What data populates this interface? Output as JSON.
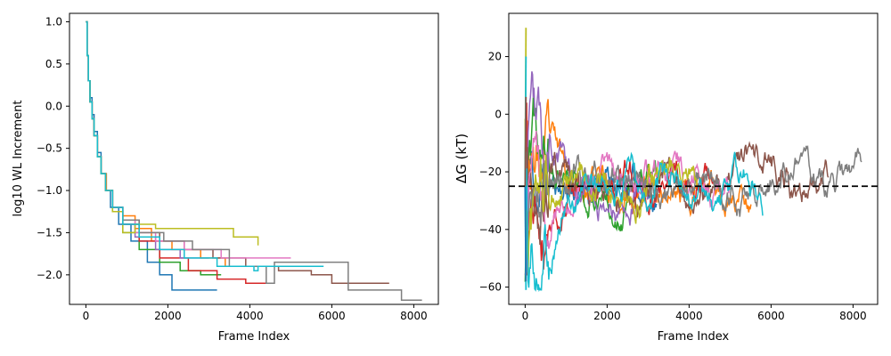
{
  "chart_data": [
    {
      "type": "line",
      "xlabel": "Frame Index",
      "ylabel": "log10 WL Increment",
      "xlim": [
        -400,
        8600
      ],
      "ylim": [
        -2.35,
        1.1
      ],
      "x_ticks": [
        0,
        2000,
        4000,
        6000,
        8000
      ],
      "y_ticks": [
        1.0,
        0.5,
        0.0,
        -0.5,
        -1.0,
        -1.5,
        -2.0
      ],
      "x_tick_labels": [
        "0",
        "2000",
        "4000",
        "6000",
        "8000"
      ],
      "y_tick_labels": [
        "1.0",
        "0.5",
        "0.0",
        "−0.5",
        "−1.0",
        "−1.5",
        "−2.0"
      ],
      "grid": false,
      "line_style": "step",
      "colors": [
        "#1f77b4",
        "#ff7f0e",
        "#2ca02c",
        "#d62728",
        "#9467bd",
        "#8c564b",
        "#e377c2",
        "#7f7f7f",
        "#bcbd22",
        "#17becf"
      ],
      "series": [
        {
          "color": "#1f77b4",
          "x": [
            0,
            30,
            60,
            100,
            150,
            200,
            280,
            370,
            480,
            600,
            800,
            1100,
            1500,
            1800,
            2100,
            3200
          ],
          "y": [
            1.0,
            0.6,
            0.3,
            0.1,
            -0.1,
            -0.3,
            -0.55,
            -0.8,
            -1.0,
            -1.2,
            -1.4,
            -1.6,
            -1.85,
            -2.0,
            -2.18,
            -2.18
          ]
        },
        {
          "color": "#ff7f0e",
          "x": [
            0,
            30,
            60,
            100,
            150,
            200,
            280,
            370,
            500,
            650,
            900,
            1200,
            1600,
            2100,
            2800,
            3400,
            4000,
            4600,
            5500
          ],
          "y": [
            1.0,
            0.6,
            0.3,
            0.05,
            -0.15,
            -0.35,
            -0.6,
            -0.8,
            -1.0,
            -1.2,
            -1.3,
            -1.45,
            -1.6,
            -1.7,
            -1.8,
            -1.9,
            -1.9,
            -1.9,
            -1.9
          ]
        },
        {
          "color": "#2ca02c",
          "x": [
            0,
            30,
            60,
            100,
            150,
            200,
            280,
            370,
            480,
            650,
            900,
            1300,
            1800,
            2300,
            2800,
            3300
          ],
          "y": [
            1.0,
            0.6,
            0.3,
            0.05,
            -0.15,
            -0.35,
            -0.6,
            -0.8,
            -1.0,
            -1.25,
            -1.5,
            -1.7,
            -1.85,
            -1.95,
            -2.0,
            -2.0
          ]
        },
        {
          "color": "#d62728",
          "x": [
            0,
            30,
            60,
            100,
            150,
            200,
            280,
            370,
            480,
            650,
            900,
            1300,
            1800,
            2500,
            3200,
            3900,
            4600
          ],
          "y": [
            1.0,
            0.6,
            0.3,
            0.05,
            -0.15,
            -0.35,
            -0.6,
            -0.8,
            -1.0,
            -1.2,
            -1.4,
            -1.6,
            -1.8,
            -1.95,
            -2.05,
            -2.1,
            -2.1
          ]
        },
        {
          "color": "#9467bd",
          "x": [
            0,
            30,
            60,
            100,
            150,
            200,
            280,
            370,
            480,
            650,
            900,
            1200,
            1700,
            2300,
            3000
          ],
          "y": [
            1.0,
            0.6,
            0.3,
            0.05,
            -0.15,
            -0.35,
            -0.6,
            -0.8,
            -1.0,
            -1.2,
            -1.4,
            -1.55,
            -1.7,
            -1.8,
            -1.8
          ]
        },
        {
          "color": "#8c564b",
          "x": [
            0,
            30,
            60,
            100,
            150,
            200,
            280,
            370,
            480,
            650,
            900,
            1300,
            1800,
            2400,
            3100,
            3900,
            4700,
            5500,
            6000,
            7400
          ],
          "y": [
            1.0,
            0.6,
            0.3,
            0.05,
            -0.15,
            -0.35,
            -0.6,
            -0.8,
            -1.0,
            -1.2,
            -1.35,
            -1.5,
            -1.6,
            -1.7,
            -1.8,
            -1.9,
            -1.95,
            -2.0,
            -2.1,
            -2.1
          ]
        },
        {
          "color": "#e377c2",
          "x": [
            0,
            30,
            60,
            100,
            150,
            200,
            280,
            370,
            480,
            650,
            900,
            1200,
            1700,
            2400,
            3300,
            4200,
            5000
          ],
          "y": [
            1.0,
            0.6,
            0.3,
            0.05,
            -0.15,
            -0.35,
            -0.6,
            -0.8,
            -1.0,
            -1.2,
            -1.35,
            -1.5,
            -1.6,
            -1.7,
            -1.8,
            -1.8,
            -1.8
          ]
        },
        {
          "color": "#7f7f7f",
          "x": [
            0,
            30,
            60,
            100,
            150,
            200,
            280,
            370,
            480,
            650,
            900,
            1300,
            1900,
            2600,
            3500,
            4400,
            4600,
            6400,
            7700,
            8200
          ],
          "y": [
            1.0,
            0.6,
            0.3,
            0.05,
            -0.15,
            -0.35,
            -0.6,
            -0.8,
            -1.0,
            -1.2,
            -1.35,
            -1.5,
            -1.6,
            -1.7,
            -1.9,
            -2.1,
            -1.85,
            -2.18,
            -2.3,
            -2.3
          ]
        },
        {
          "color": "#bcbd22",
          "x": [
            0,
            30,
            60,
            100,
            150,
            200,
            280,
            370,
            480,
            650,
            900,
            1200,
            1700,
            2300,
            3000,
            3600,
            4200
          ],
          "y": [
            1.0,
            0.6,
            0.3,
            0.05,
            -0.15,
            -0.35,
            -0.6,
            -0.8,
            -1.0,
            -1.25,
            -1.5,
            -1.4,
            -1.45,
            -1.45,
            -1.45,
            -1.55,
            -1.65
          ]
        },
        {
          "color": "#17becf",
          "x": [
            0,
            30,
            60,
            100,
            150,
            200,
            280,
            370,
            480,
            650,
            900,
            1300,
            1800,
            2400,
            3200,
            4100,
            4200,
            5800
          ],
          "y": [
            1.0,
            0.6,
            0.3,
            0.05,
            -0.15,
            -0.35,
            -0.6,
            -0.8,
            -1.0,
            -1.2,
            -1.4,
            -1.55,
            -1.7,
            -1.8,
            -1.9,
            -1.95,
            -1.9,
            -1.9
          ]
        }
      ]
    },
    {
      "type": "line",
      "xlabel": "Frame Index",
      "ylabel": "ΔG (kT)",
      "xlim": [
        -400,
        8600
      ],
      "ylim": [
        -66,
        35
      ],
      "x_ticks": [
        0,
        2000,
        4000,
        6000,
        8000
      ],
      "y_ticks": [
        20,
        0,
        -20,
        -40,
        -60
      ],
      "x_tick_labels": [
        "0",
        "2000",
        "4000",
        "6000",
        "8000"
      ],
      "y_tick_labels": [
        "20",
        "0",
        "−20",
        "−40",
        "−60"
      ],
      "grid": false,
      "reference_line": {
        "y": -25,
        "style": "dashed",
        "color": "#000000"
      },
      "colors": [
        "#1f77b4",
        "#ff7f0e",
        "#2ca02c",
        "#d62728",
        "#9467bd",
        "#8c564b",
        "#e377c2",
        "#7f7f7f",
        "#bcbd22",
        "#17becf"
      ],
      "series": [
        {
          "color": "#1f77b4",
          "end": 3200,
          "seed": 11
        },
        {
          "color": "#ff7f0e",
          "end": 5500,
          "seed": 23
        },
        {
          "color": "#2ca02c",
          "end": 3300,
          "seed": 37
        },
        {
          "color": "#d62728",
          "end": 4600,
          "seed": 41
        },
        {
          "color": "#9467bd",
          "end": 3000,
          "seed": 53
        },
        {
          "color": "#8c564b",
          "end": 7400,
          "seed": 67
        },
        {
          "color": "#e377c2",
          "end": 5000,
          "seed": 71
        },
        {
          "color": "#7f7f7f",
          "end": 8200,
          "seed": 83
        },
        {
          "color": "#bcbd22",
          "end": 4200,
          "seed": 97
        },
        {
          "color": "#17becf",
          "end": 5800,
          "seed": 101
        }
      ],
      "initial_spikes": [
        {
          "color": "#bcbd22",
          "y": 30
        },
        {
          "color": "#17becf",
          "y": 20
        },
        {
          "color": "#17becf",
          "y": -61
        },
        {
          "color": "#1f77b4",
          "y": -58
        },
        {
          "color": "#8c564b",
          "y": 6
        }
      ]
    }
  ]
}
